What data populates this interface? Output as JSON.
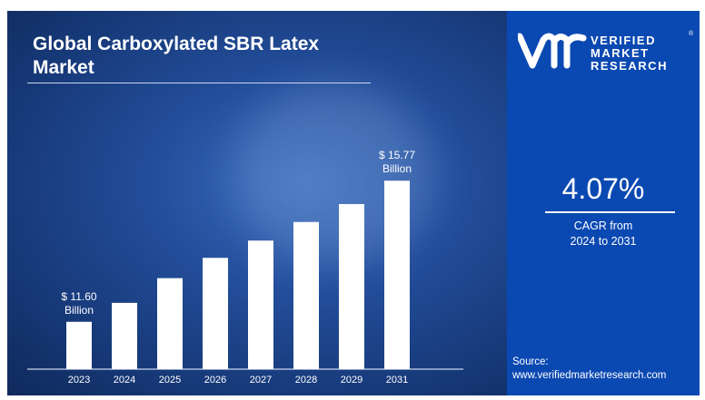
{
  "colors": {
    "left_bg": "#1c4286",
    "right_bg": "#0b49b2",
    "bar": "#ffffff"
  },
  "header": {
    "title_line1": "Global Carboxylated SBR Latex",
    "title_line2": "Market"
  },
  "logo": {
    "mark": "vmr",
    "line1": "VERIFIED",
    "line2": "MARKET",
    "line3": "RESEARCH",
    "registered": "®"
  },
  "cagr": {
    "value": "4.07%",
    "label_line1": "CAGR from",
    "label_line2": "2024 to 2031"
  },
  "source": {
    "label": "Source:",
    "url": "www.verifiedmarketresearch.com"
  },
  "chart_data": {
    "type": "bar",
    "title": "Global Carboxylated SBR Latex Market",
    "categories": [
      "2023",
      "2024",
      "2025",
      "2026",
      "2027",
      "2028",
      "2029",
      "2031"
    ],
    "values": [
      11.6,
      12.16,
      12.89,
      13.49,
      14.0,
      14.55,
      15.08,
      15.77
    ],
    "values_note": "only 2023 and 2031 labeled; others estimated",
    "unit": "USD Billion",
    "data_labels": [
      {
        "index": 0,
        "line1": "$ 11.60",
        "line2": "Billion"
      },
      {
        "index": 7,
        "line1": "$ 15.77",
        "line2": "Billion"
      }
    ],
    "ylim": [
      10.2,
      16.5
    ],
    "xlabel": "",
    "ylabel": "",
    "grid": false,
    "legend": "none"
  }
}
